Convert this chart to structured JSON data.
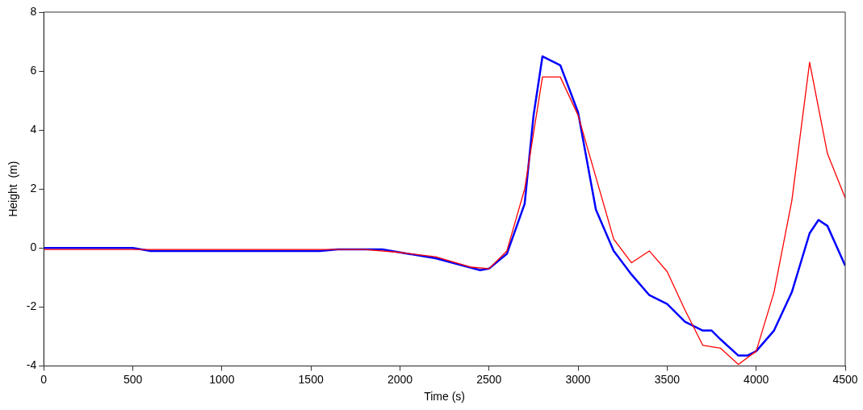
{
  "chart_data": {
    "type": "line",
    "xlabel": "Time (s)",
    "ylabel": "Height  (m)",
    "xlim": [
      0,
      4500
    ],
    "xticks": [
      0,
      500,
      1000,
      1500,
      2000,
      2500,
      3000,
      3500,
      4000,
      4500
    ],
    "ylim": [
      -4,
      8
    ],
    "yticks": [
      -4,
      -2,
      0,
      2,
      4,
      6,
      8
    ],
    "grid": false,
    "legend": false,
    "marker": "none",
    "line_style": "solid",
    "series": [
      {
        "color": "#ff0000",
        "x": [
          0,
          500,
          1000,
          1500,
          1800,
          2000,
          2200,
          2400,
          2500,
          2600,
          2700,
          2800,
          2900,
          3000,
          3100,
          3200,
          3300,
          3400,
          3500,
          3600,
          3700,
          3800,
          3900,
          4000,
          4100,
          4200,
          4300,
          4400,
          4500
        ],
        "values": [
          -0.05,
          -0.05,
          -0.05,
          -0.05,
          -0.05,
          -0.15,
          -0.3,
          -0.65,
          -0.7,
          -0.1,
          2.0,
          5.8,
          5.8,
          4.5,
          2.4,
          0.3,
          -0.5,
          -0.1,
          -0.8,
          -2.1,
          -3.3,
          -3.4,
          -3.95,
          -3.5,
          -1.5,
          1.6,
          6.3,
          3.2,
          1.7
        ]
      },
      {
        "color": "#0000ff",
        "x": [
          0,
          500,
          600,
          1050,
          1550,
          1650,
          1900,
          2000,
          2200,
          2450,
          2500,
          2600,
          2700,
          2750,
          2800,
          2900,
          3000,
          3100,
          3200,
          3300,
          3400,
          3500,
          3600,
          3700,
          3750,
          3800,
          3900,
          3950,
          4000,
          4100,
          4200,
          4300,
          4350,
          4400,
          4500
        ],
        "values": [
          0,
          0,
          -0.1,
          -0.1,
          -0.1,
          -0.05,
          -0.05,
          -0.15,
          -0.35,
          -0.75,
          -0.7,
          -0.2,
          1.5,
          4.5,
          6.5,
          6.2,
          4.6,
          1.3,
          -0.1,
          -0.9,
          -1.6,
          -1.9,
          -2.5,
          -2.8,
          -2.8,
          -3.1,
          -3.65,
          -3.65,
          -3.5,
          -2.8,
          -1.5,
          0.5,
          0.95,
          0.75,
          -0.6
        ]
      }
    ]
  }
}
